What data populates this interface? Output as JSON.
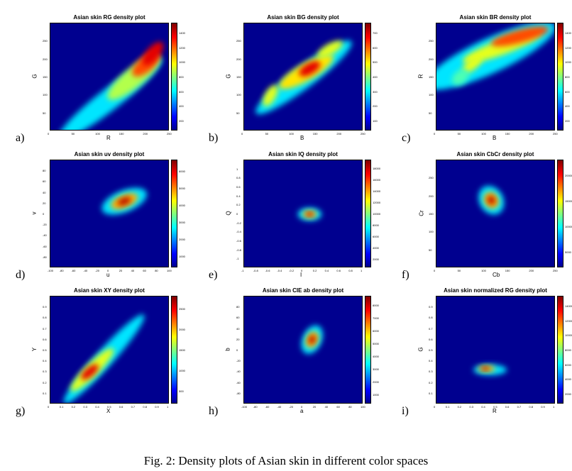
{
  "caption": "Fig.  2: Density plots of Asian skin in different color spaces",
  "panels": [
    {
      "label": "a)",
      "title": "Asian skin RG density plot",
      "xlabel": "R",
      "ylabel": "G",
      "xticks": [
        "0",
        "50",
        "100",
        "150",
        "200",
        "250"
      ],
      "yticks": [
        "50",
        "100",
        "150",
        "200",
        "250"
      ],
      "cticks": [
        "1400",
        "1200",
        "1000",
        "800",
        "600",
        "400",
        "200"
      ],
      "blobs": [
        {
          "cx": 0.5,
          "cy": 0.3,
          "rx": 0.55,
          "ry": 0.1,
          "rot": -38,
          "level": 0.35
        },
        {
          "cx": 0.7,
          "cy": 0.5,
          "rx": 0.28,
          "ry": 0.09,
          "rot": -40,
          "level": 0.55
        },
        {
          "cx": 0.8,
          "cy": 0.62,
          "rx": 0.14,
          "ry": 0.07,
          "rot": -40,
          "level": 0.8
        },
        {
          "cx": 0.86,
          "cy": 0.72,
          "rx": 0.12,
          "ry": 0.06,
          "rot": -50,
          "level": 0.9
        }
      ]
    },
    {
      "label": "b)",
      "title": "Asian skin BG density plot",
      "xlabel": "B",
      "ylabel": "G",
      "xticks": [
        "0",
        "50",
        "100",
        "150",
        "200",
        "250"
      ],
      "yticks": [
        "50",
        "100",
        "150",
        "200",
        "250"
      ],
      "cticks": [
        "700",
        "600",
        "500",
        "400",
        "300",
        "200",
        "100"
      ],
      "blobs": [
        {
          "cx": 0.5,
          "cy": 0.5,
          "rx": 0.5,
          "ry": 0.1,
          "rot": -37,
          "level": 0.35
        },
        {
          "cx": 0.52,
          "cy": 0.55,
          "rx": 0.26,
          "ry": 0.08,
          "rot": -30,
          "level": 0.65
        },
        {
          "cx": 0.55,
          "cy": 0.58,
          "rx": 0.1,
          "ry": 0.05,
          "rot": -30,
          "level": 0.9
        },
        {
          "cx": 0.22,
          "cy": 0.33,
          "rx": 0.1,
          "ry": 0.05,
          "rot": -60,
          "level": 0.6
        },
        {
          "cx": 0.72,
          "cy": 0.76,
          "rx": 0.12,
          "ry": 0.05,
          "rot": -30,
          "level": 0.6
        }
      ]
    },
    {
      "label": "c)",
      "title": "Asian skin BR density plot",
      "xlabel": "B",
      "ylabel": "R",
      "xticks": [
        "0",
        "50",
        "100",
        "150",
        "200",
        "250"
      ],
      "yticks": [
        "50",
        "100",
        "150",
        "200",
        "250"
      ],
      "cticks": [
        "1400",
        "1200",
        "1000",
        "800",
        "600",
        "400",
        "200"
      ],
      "blobs": [
        {
          "cx": 0.45,
          "cy": 0.7,
          "rx": 0.6,
          "ry": 0.16,
          "rot": -25,
          "level": 0.35
        },
        {
          "cx": 0.55,
          "cy": 0.78,
          "rx": 0.35,
          "ry": 0.07,
          "rot": -20,
          "level": 0.6
        },
        {
          "cx": 0.7,
          "cy": 0.88,
          "rx": 0.25,
          "ry": 0.06,
          "rot": -15,
          "level": 0.8
        },
        {
          "cx": 0.3,
          "cy": 0.62,
          "rx": 0.1,
          "ry": 0.05,
          "rot": -40,
          "level": 0.6
        },
        {
          "cx": 0.2,
          "cy": 0.5,
          "rx": 0.08,
          "ry": 0.06,
          "rot": -40,
          "level": 0.45
        }
      ]
    },
    {
      "label": "d)",
      "title": "Asian skin uv density plot",
      "xlabel": "u",
      "ylabel": "v",
      "xticks": [
        "-100",
        "-80",
        "-60",
        "-40",
        "-20",
        "0",
        "20",
        "40",
        "60",
        "80",
        "100"
      ],
      "yticks": [
        "-80",
        "-60",
        "-40",
        "-20",
        "0",
        "20",
        "40",
        "60",
        "80"
      ],
      "cticks": [
        "6000",
        "5000",
        "4000",
        "3000",
        "2000",
        "1000"
      ],
      "blobs": [
        {
          "cx": 0.62,
          "cy": 0.62,
          "rx": 0.2,
          "ry": 0.1,
          "rot": -22,
          "level": 0.35
        },
        {
          "cx": 0.62,
          "cy": 0.62,
          "rx": 0.12,
          "ry": 0.06,
          "rot": -22,
          "level": 0.7
        },
        {
          "cx": 0.62,
          "cy": 0.62,
          "rx": 0.06,
          "ry": 0.03,
          "rot": -22,
          "level": 0.95
        }
      ]
    },
    {
      "label": "e)",
      "title": "Asian skin IQ density plot",
      "xlabel": "I",
      "ylabel": "Q",
      "xticks": [
        "-1",
        "-0.8",
        "-0.6",
        "-0.4",
        "-0.2",
        "0",
        "0.2",
        "0.4",
        "0.6",
        "0.8",
        "1"
      ],
      "yticks": [
        "-1",
        "-0.8",
        "-0.6",
        "-0.4",
        "-0.2",
        "0",
        "0.2",
        "0.4",
        "0.6",
        "0.8",
        "1"
      ],
      "cticks": [
        "18000",
        "16000",
        "14000",
        "12000",
        "10000",
        "8000",
        "6000",
        "4000",
        "2000"
      ],
      "blobs": [
        {
          "cx": 0.55,
          "cy": 0.5,
          "rx": 0.1,
          "ry": 0.06,
          "rot": 0,
          "level": 0.35
        },
        {
          "cx": 0.55,
          "cy": 0.5,
          "rx": 0.06,
          "ry": 0.035,
          "rot": 0,
          "level": 0.7
        },
        {
          "cx": 0.55,
          "cy": 0.5,
          "rx": 0.03,
          "ry": 0.018,
          "rot": 0,
          "level": 0.95
        }
      ]
    },
    {
      "label": "f)",
      "title": "Asian skin CbCr density plot",
      "xlabel": "Cb",
      "ylabel": "Cr",
      "xticks": [
        "0",
        "50",
        "100",
        "150",
        "200",
        "250"
      ],
      "yticks": [
        "50",
        "100",
        "150",
        "200",
        "250"
      ],
      "cticks": [
        "20000",
        "15000",
        "10000",
        "5000"
      ],
      "blobs": [
        {
          "cx": 0.46,
          "cy": 0.63,
          "rx": 0.1,
          "ry": 0.14,
          "rot": -30,
          "level": 0.35
        },
        {
          "cx": 0.46,
          "cy": 0.63,
          "rx": 0.06,
          "ry": 0.08,
          "rot": -30,
          "level": 0.7
        },
        {
          "cx": 0.46,
          "cy": 0.63,
          "rx": 0.03,
          "ry": 0.04,
          "rot": -30,
          "level": 0.95
        }
      ]
    },
    {
      "label": "g)",
      "title": "Asian skin XY density plot",
      "xlabel": "X",
      "ylabel": "Y",
      "xticks": [
        "0",
        "0.1",
        "0.2",
        "0.3",
        "0.4",
        "0.5",
        "0.6",
        "0.7",
        "0.8",
        "0.9",
        "1"
      ],
      "yticks": [
        "0.1",
        "0.2",
        "0.3",
        "0.4",
        "0.5",
        "0.6",
        "0.7",
        "0.8",
        "0.9"
      ],
      "cticks": [
        "2500",
        "2000",
        "1500",
        "1000",
        "500"
      ],
      "blobs": [
        {
          "cx": 0.45,
          "cy": 0.42,
          "rx": 0.5,
          "ry": 0.08,
          "rot": -48,
          "level": 0.35
        },
        {
          "cx": 0.35,
          "cy": 0.32,
          "rx": 0.25,
          "ry": 0.06,
          "rot": -45,
          "level": 0.6
        },
        {
          "cx": 0.33,
          "cy": 0.3,
          "rx": 0.09,
          "ry": 0.04,
          "rot": -40,
          "level": 0.9
        }
      ]
    },
    {
      "label": "h)",
      "title": "Asian skin CIE ab density plot",
      "xlabel": "a",
      "ylabel": "b",
      "xticks": [
        "-100",
        "-80",
        "-60",
        "-40",
        "-20",
        "0",
        "20",
        "40",
        "60",
        "80",
        "100"
      ],
      "yticks": [
        "-80",
        "-60",
        "-40",
        "-20",
        "0",
        "20",
        "40",
        "60",
        "80"
      ],
      "cticks": [
        "8000",
        "7000",
        "6000",
        "5000",
        "4000",
        "3000",
        "2000",
        "1000"
      ],
      "blobs": [
        {
          "cx": 0.57,
          "cy": 0.6,
          "rx": 0.08,
          "ry": 0.14,
          "rot": 25,
          "level": 0.35
        },
        {
          "cx": 0.57,
          "cy": 0.6,
          "rx": 0.05,
          "ry": 0.08,
          "rot": 25,
          "level": 0.7
        },
        {
          "cx": 0.57,
          "cy": 0.6,
          "rx": 0.025,
          "ry": 0.04,
          "rot": 25,
          "level": 0.95
        }
      ]
    },
    {
      "label": "i)",
      "title": "Asian skin normalized RG density plot",
      "xlabel": "R",
      "ylabel": "G",
      "xticks": [
        "0",
        "0.1",
        "0.2",
        "0.3",
        "0.4",
        "0.5",
        "0.6",
        "0.7",
        "0.8",
        "0.9",
        "1"
      ],
      "yticks": [
        "0.1",
        "0.2",
        "0.3",
        "0.4",
        "0.5",
        "0.6",
        "0.7",
        "0.8",
        "0.9"
      ],
      "cticks": [
        "14000",
        "12000",
        "10000",
        "8000",
        "6000",
        "4000",
        "2000"
      ],
      "blobs": [
        {
          "cx": 0.45,
          "cy": 0.32,
          "rx": 0.14,
          "ry": 0.05,
          "rot": 0,
          "level": 0.35
        },
        {
          "cx": 0.42,
          "cy": 0.33,
          "rx": 0.07,
          "ry": 0.03,
          "rot": 0,
          "level": 0.7
        },
        {
          "cx": 0.41,
          "cy": 0.33,
          "rx": 0.035,
          "ry": 0.016,
          "rot": 0,
          "level": 0.95
        }
      ]
    }
  ]
}
